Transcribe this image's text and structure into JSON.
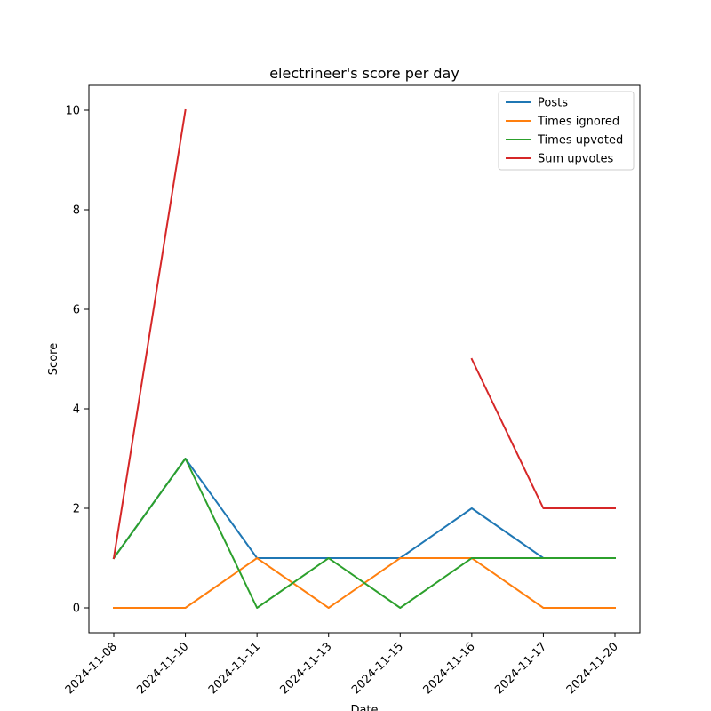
{
  "chart_data": {
    "type": "line",
    "title": "electrineer's score per day",
    "xlabel": "Date",
    "ylabel": "Score",
    "categories": [
      "2024-11-08",
      "2024-11-10",
      "2024-11-11",
      "2024-11-13",
      "2024-11-15",
      "2024-11-16",
      "2024-11-17",
      "2024-11-20"
    ],
    "ylim": [
      -0.5,
      10.5
    ],
    "yticks": [
      0,
      2,
      4,
      6,
      8,
      10
    ],
    "grid": false,
    "legend_position": "top-right",
    "series": [
      {
        "name": "Posts",
        "color": "#1f77b4",
        "values": [
          1,
          3,
          1,
          1,
          1,
          2,
          1,
          1
        ]
      },
      {
        "name": "Times ignored",
        "color": "#ff7f0e",
        "values": [
          0,
          0,
          1,
          0,
          1,
          1,
          0,
          0
        ]
      },
      {
        "name": "Times upvoted",
        "color": "#2ca02c",
        "values": [
          1,
          3,
          0,
          1,
          0,
          1,
          1,
          1
        ]
      },
      {
        "name": "Sum upvotes",
        "color": "#d62728",
        "values": [
          1,
          10,
          null,
          null,
          null,
          5,
          2,
          2
        ]
      }
    ]
  }
}
